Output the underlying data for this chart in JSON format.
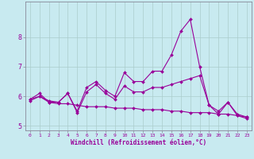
{
  "title": "",
  "xlabel": "Windchill (Refroidissement éolien,°C)",
  "background_color": "#c8eaf0",
  "line_color": "#990099",
  "x": [
    0,
    1,
    2,
    3,
    4,
    5,
    6,
    7,
    8,
    9,
    10,
    11,
    12,
    13,
    14,
    15,
    16,
    17,
    18,
    19,
    20,
    21,
    22,
    23
  ],
  "series1": [
    5.9,
    6.1,
    5.8,
    5.8,
    6.1,
    5.5,
    6.3,
    6.5,
    6.2,
    6.0,
    6.8,
    6.5,
    6.5,
    6.85,
    6.85,
    7.4,
    8.2,
    8.6,
    7.0,
    5.7,
    5.5,
    5.8,
    5.4,
    5.3
  ],
  "series2": [
    5.9,
    6.0,
    5.85,
    5.8,
    6.1,
    5.45,
    6.15,
    6.4,
    6.1,
    5.9,
    6.35,
    6.15,
    6.15,
    6.3,
    6.3,
    6.4,
    6.5,
    6.6,
    6.7,
    5.7,
    5.4,
    5.8,
    5.35,
    5.25
  ],
  "series3": [
    5.85,
    6.0,
    5.8,
    5.75,
    5.75,
    5.7,
    5.65,
    5.65,
    5.65,
    5.6,
    5.6,
    5.6,
    5.55,
    5.55,
    5.55,
    5.5,
    5.5,
    5.45,
    5.45,
    5.45,
    5.4,
    5.4,
    5.35,
    5.3
  ],
  "ylim": [
    4.85,
    9.2
  ],
  "yticks": [
    5,
    6,
    7,
    8
  ],
  "xticks": [
    0,
    1,
    2,
    3,
    4,
    5,
    6,
    7,
    8,
    9,
    10,
    11,
    12,
    13,
    14,
    15,
    16,
    17,
    18,
    19,
    20,
    21,
    22,
    23
  ],
  "grid_color": "#aacccc",
  "axis_color": "#888899",
  "tick_fontsize": 4.5,
  "xlabel_fontsize": 5.5,
  "ytick_fontsize": 6.0,
  "marker_size": 2.0,
  "line_width": 0.8
}
